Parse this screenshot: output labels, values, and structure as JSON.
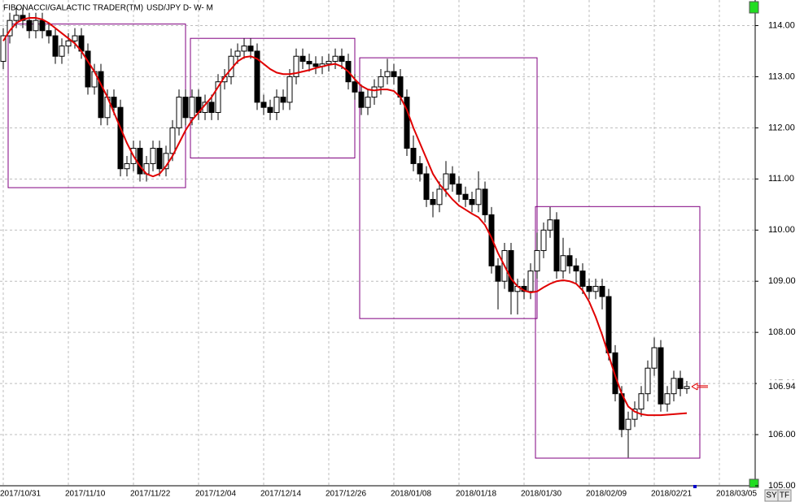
{
  "chart_data": {
    "type": "candlestick",
    "title": "FIBONACCI/GALACTIC TRADER(TM)",
    "subtitle": "USD/JPY D- W- M",
    "categories": [
      "2017/10/31",
      null,
      null,
      null,
      null,
      null,
      null,
      null,
      null,
      null,
      "2017/11/10",
      null,
      null,
      null,
      null,
      null,
      null,
      null,
      null,
      null,
      "2017/11/22",
      null,
      null,
      null,
      null,
      null,
      null,
      null,
      null,
      null,
      "2017/12/04",
      null,
      null,
      null,
      null,
      null,
      null,
      null,
      null,
      null,
      "2017/12/14",
      null,
      null,
      null,
      null,
      null,
      null,
      null,
      null,
      null,
      "2017/12/26",
      null,
      null,
      null,
      null,
      null,
      null,
      null,
      null,
      null,
      "2018/01/08",
      null,
      null,
      null,
      null,
      null,
      null,
      null,
      null,
      null,
      "2018/01/18",
      null,
      null,
      null,
      null,
      null,
      null,
      null,
      null,
      null,
      "2018/01/30",
      null,
      null,
      null,
      null,
      null,
      null,
      null,
      null,
      null,
      "2018/02/09",
      null,
      null,
      null,
      null,
      null,
      null,
      null,
      null,
      null,
      "2018/02/21",
      null,
      null,
      null,
      null,
      null,
      null,
      null,
      null,
      null,
      "2018/03/05"
    ],
    "open": [
      113.3,
      113.8,
      114.1,
      114.2,
      114.1,
      113.9,
      114.1,
      113.9,
      113.8,
      113.4,
      113.6,
      113.7,
      113.8,
      113.5,
      112.8,
      113.1,
      112.2,
      112.6,
      112.4,
      111.2,
      111.3,
      111.6,
      111.1,
      111.3,
      111.6,
      111.2,
      111.5,
      112.0,
      112.6,
      112.2,
      112.6,
      112.3,
      112.5,
      112.3,
      112.9,
      113.0,
      113.4,
      113.5,
      113.6,
      113.5,
      112.5,
      112.4,
      112.3,
      112.6,
      112.5,
      113.0,
      113.4,
      113.3,
      113.25,
      113.2,
      113.25,
      113.3,
      113.4,
      113.3,
      112.9,
      112.7,
      112.4,
      112.6,
      112.8,
      113.0,
      113.1,
      113.0,
      112.6,
      111.6,
      111.3,
      111.1,
      110.6,
      110.5,
      110.8,
      111.1,
      110.9,
      110.7,
      110.6,
      110.5,
      110.8,
      110.3,
      109.3,
      109.0,
      109.6,
      108.8,
      108.9,
      108.8,
      109.2,
      109.6,
      110.0,
      110.2,
      109.2,
      109.5,
      109.3,
      109.2,
      108.9,
      108.8,
      108.9,
      108.7,
      107.6,
      106.8,
      106.1,
      106.3,
      106.5,
      106.8,
      107.3,
      107.7,
      106.6,
      106.8,
      107.1,
      106.9,
      null,
      null,
      null,
      null,
      null
    ],
    "high": [
      113.95,
      114.25,
      114.35,
      114.35,
      114.25,
      114.25,
      114.25,
      114.05,
      113.95,
      113.75,
      113.85,
      113.95,
      113.95,
      113.65,
      113.25,
      113.25,
      112.75,
      112.75,
      112.55,
      111.45,
      111.75,
      111.75,
      111.45,
      111.75,
      111.75,
      111.65,
      112.15,
      112.75,
      112.75,
      112.75,
      112.75,
      112.65,
      112.65,
      113.05,
      113.15,
      113.55,
      113.65,
      113.75,
      113.75,
      113.65,
      112.65,
      112.55,
      112.75,
      112.75,
      113.15,
      113.55,
      113.55,
      113.45,
      113.4,
      113.4,
      113.45,
      113.55,
      113.55,
      113.45,
      113.05,
      112.85,
      112.75,
      112.95,
      113.15,
      113.35,
      113.25,
      113.15,
      112.75,
      111.85,
      111.45,
      111.25,
      110.75,
      110.95,
      111.35,
      111.25,
      111.05,
      110.85,
      110.75,
      111.15,
      110.95,
      110.45,
      109.45,
      109.75,
      109.75,
      109.05,
      109.05,
      109.35,
      109.95,
      110.15,
      110.45,
      110.35,
      109.85,
      109.65,
      109.45,
      109.35,
      109.05,
      109.05,
      109.05,
      108.85,
      107.75,
      106.95,
      106.45,
      106.65,
      106.95,
      107.45,
      107.9,
      107.85,
      106.95,
      107.25,
      107.25,
      107.05,
      null,
      null,
      null,
      null,
      null
    ],
    "low": [
      113.15,
      113.65,
      113.95,
      113.95,
      113.75,
      113.75,
      113.75,
      113.65,
      113.25,
      113.25,
      113.45,
      113.55,
      113.35,
      112.65,
      112.65,
      112.05,
      112.05,
      112.25,
      111.05,
      111.05,
      111.15,
      110.95,
      110.95,
      111.15,
      111.05,
      111.05,
      111.35,
      111.85,
      112.05,
      112.05,
      112.15,
      112.15,
      112.15,
      112.15,
      112.75,
      112.85,
      113.25,
      113.35,
      113.35,
      112.35,
      112.25,
      112.15,
      112.15,
      112.35,
      112.35,
      112.85,
      113.15,
      113.1,
      113.05,
      113.05,
      113.1,
      113.15,
      113.15,
      112.75,
      112.55,
      112.25,
      112.25,
      112.45,
      112.65,
      112.85,
      112.85,
      112.45,
      111.45,
      111.15,
      110.95,
      110.45,
      110.25,
      110.35,
      110.65,
      110.75,
      110.55,
      110.45,
      110.35,
      110.35,
      110.15,
      109.15,
      108.45,
      108.85,
      108.35,
      108.35,
      108.65,
      108.65,
      109.05,
      109.45,
      109.85,
      109.05,
      109.05,
      109.15,
      108.95,
      108.75,
      108.65,
      108.65,
      108.45,
      107.45,
      106.65,
      105.95,
      105.55,
      106.15,
      106.35,
      106.65,
      107.15,
      106.45,
      106.45,
      106.65,
      106.75,
      106.8,
      null,
      null,
      null,
      null,
      null
    ],
    "close": [
      113.8,
      114.1,
      114.2,
      114.1,
      113.9,
      114.1,
      113.9,
      113.8,
      113.4,
      113.6,
      113.7,
      113.8,
      113.5,
      112.8,
      113.1,
      112.2,
      112.6,
      112.4,
      111.2,
      111.3,
      111.6,
      111.1,
      111.3,
      111.6,
      111.2,
      111.5,
      112.0,
      112.6,
      112.2,
      112.6,
      112.3,
      112.5,
      112.3,
      112.9,
      113.0,
      113.4,
      113.5,
      113.6,
      113.5,
      112.5,
      112.4,
      112.3,
      112.6,
      112.5,
      113.0,
      113.4,
      113.3,
      113.25,
      113.2,
      113.25,
      113.3,
      113.4,
      113.3,
      112.9,
      112.7,
      112.4,
      112.6,
      112.8,
      113.0,
      113.1,
      113.0,
      112.6,
      111.6,
      111.3,
      111.1,
      110.6,
      110.5,
      110.8,
      111.1,
      110.9,
      110.7,
      110.6,
      110.5,
      110.8,
      110.3,
      109.3,
      109.0,
      109.6,
      108.8,
      108.9,
      108.8,
      109.2,
      109.6,
      110.0,
      110.2,
      109.2,
      109.5,
      109.3,
      109.2,
      108.9,
      108.8,
      108.9,
      108.7,
      107.6,
      106.8,
      106.1,
      106.3,
      106.5,
      106.8,
      107.3,
      107.7,
      106.6,
      106.8,
      107.1,
      106.9,
      106.94,
      null,
      null,
      null,
      null,
      null
    ],
    "up_color": "#ffffff",
    "down_color": "#000000",
    "moving_average": {
      "color": "#e00000",
      "values": [
        113.7,
        113.9,
        114.05,
        114.12,
        114.15,
        114.15,
        114.12,
        114.05,
        113.95,
        113.85,
        113.75,
        113.65,
        113.5,
        113.3,
        113.1,
        112.85,
        112.6,
        112.3,
        112.0,
        111.7,
        111.45,
        111.25,
        111.1,
        111.05,
        111.1,
        111.25,
        111.45,
        111.7,
        111.95,
        112.15,
        112.3,
        112.45,
        112.6,
        112.8,
        113.0,
        113.15,
        113.3,
        113.38,
        113.4,
        113.35,
        113.25,
        113.15,
        113.08,
        113.05,
        113.05,
        113.07,
        113.1,
        113.13,
        113.17,
        113.2,
        113.23,
        113.25,
        113.2,
        113.1,
        112.95,
        112.82,
        112.75,
        112.73,
        112.75,
        112.75,
        112.72,
        112.6,
        112.35,
        112.0,
        111.7,
        111.4,
        111.1,
        110.9,
        110.75,
        110.6,
        110.48,
        110.4,
        110.32,
        110.25,
        110.1,
        109.85,
        109.55,
        109.3,
        109.05,
        108.9,
        108.82,
        108.78,
        108.8,
        108.88,
        108.95,
        109.0,
        109.02,
        109.0,
        108.95,
        108.82,
        108.6,
        108.3,
        107.95,
        107.55,
        107.15,
        106.8,
        106.55,
        106.45,
        106.4,
        106.38,
        106.38,
        106.38,
        106.39,
        106.4,
        106.41,
        106.42,
        null,
        null,
        null,
        null,
        null
      ]
    },
    "boxes": {
      "color": "#800080",
      "start": [
        1,
        29,
        55,
        82
      ],
      "end": [
        28,
        54,
        82,
        107
      ],
      "top": [
        114.03,
        113.75,
        113.37,
        110.46
      ],
      "bottom": [
        110.83,
        111.41,
        108.27,
        105.54
      ]
    },
    "last_price": 106.94,
    "last_price_color": "#e00000",
    "ylim": [
      105,
      114.5
    ],
    "yticks": [
      {
        "value": 105,
        "label": "105.00"
      },
      {
        "value": 106,
        "label": "106.00"
      },
      {
        "value": 107,
        "label": "107.00"
      },
      {
        "value": 108,
        "label": "108.00"
      },
      {
        "value": 109,
        "label": "109.00"
      },
      {
        "value": 110,
        "label": "110.00"
      },
      {
        "value": 111,
        "label": "111.00"
      },
      {
        "value": 112,
        "label": "112.00"
      },
      {
        "value": 113,
        "label": "113.00"
      },
      {
        "value": 114,
        "label": "114.00"
      }
    ],
    "grid": true,
    "buttons": [
      "SY",
      "TF"
    ]
  }
}
